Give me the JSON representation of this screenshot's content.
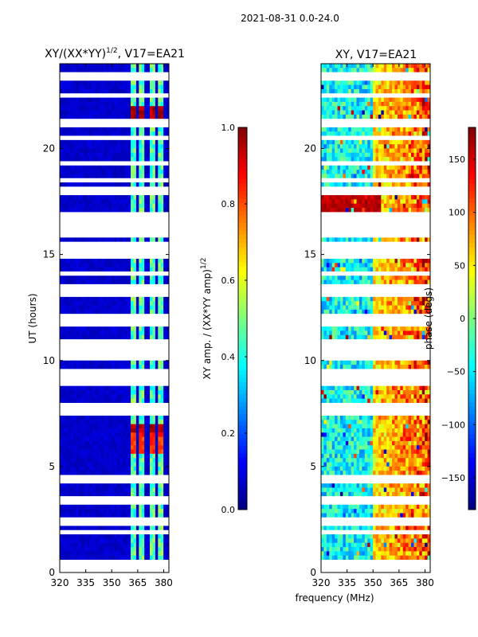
{
  "figure": {
    "suptitle": "2021-08-31 0.0-24.0",
    "shared_xlabel": "frequency (MHz)"
  },
  "chart_data": [
    {
      "type": "heatmap",
      "title_main": "XY/(XX*YY)",
      "title_exp": "1/2",
      "title_suffix": ", V17=EA21",
      "xlabel": "",
      "ylabel": "UT (hours)",
      "xlim": [
        320,
        383
      ],
      "ylim": [
        0,
        24
      ],
      "xticks": [
        320,
        335,
        350,
        365,
        380
      ],
      "yticks": [
        0,
        5,
        10,
        15,
        20
      ],
      "colormap": "jet",
      "colorbar": {
        "label_main": "XY amp. / (XX*YY amp)",
        "label_exp": "1/2",
        "range": [
          0.0,
          1.0
        ],
        "ticks": [
          "0.0",
          "0.2",
          "0.4",
          "0.6",
          "0.8",
          "1.0"
        ]
      },
      "background_value": 0.05,
      "data_columns_mhz": [
        363,
        368,
        373,
        378
      ],
      "data_column_value": 0.35,
      "hot_bands": [
        {
          "start": 21.3,
          "end": 22.0,
          "value": 0.9
        },
        {
          "start": 6.6,
          "end": 7.0,
          "value": 0.9
        },
        {
          "start": 5.6,
          "end": 6.5,
          "value": 0.78
        }
      ],
      "flagged_rows_hours": [
        0.2,
        0.5,
        2.0,
        2.3,
        2.5,
        3.3,
        3.5,
        4.2,
        4.4,
        7.5,
        7.7,
        8.0,
        8.9,
        9.2,
        9.5,
        10.0,
        10.3,
        10.6,
        11.0,
        11.8,
        12.0,
        13.0,
        13.3,
        13.5,
        14.2,
        15.0,
        15.4,
        15.9,
        16.2,
        16.5,
        16.8,
        17.0,
        17.8,
        18.2,
        18.5,
        19.0,
        19.3,
        20.5,
        21.2,
        21.4,
        22.0,
        22.5,
        23.0,
        23.3,
        23.5
      ]
    },
    {
      "type": "heatmap",
      "title": "XY, V17=EA21",
      "xlabel": "frequency (MHz)",
      "ylabel": "",
      "xlim": [
        320,
        383
      ],
      "ylim": [
        0,
        24
      ],
      "xticks": [
        320,
        335,
        350,
        365,
        380
      ],
      "yticks": [
        0,
        5,
        10,
        15,
        20
      ],
      "colormap": "jet",
      "colorbar": {
        "label": "phase (degs)",
        "range": [
          -180,
          180
        ],
        "ticks": [
          "−150",
          "−100",
          "−50",
          "0",
          "50",
          "100",
          "150"
        ]
      },
      "red_band_hours": [
        16.9,
        18.0
      ],
      "flagged_rows_hours": [
        0.2,
        0.5,
        2.0,
        2.3,
        2.5,
        3.3,
        3.5,
        4.2,
        4.4,
        7.5,
        7.7,
        8.0,
        8.9,
        9.2,
        9.5,
        10.0,
        10.3,
        10.6,
        11.0,
        11.8,
        12.0,
        13.0,
        13.3,
        13.5,
        14.2,
        15.0,
        15.4,
        15.9,
        16.2,
        16.5,
        16.8,
        17.0,
        17.8,
        18.2,
        18.5,
        19.0,
        19.3,
        20.5,
        21.2,
        21.4,
        22.0,
        22.5,
        23.0,
        23.3,
        23.5
      ]
    }
  ]
}
